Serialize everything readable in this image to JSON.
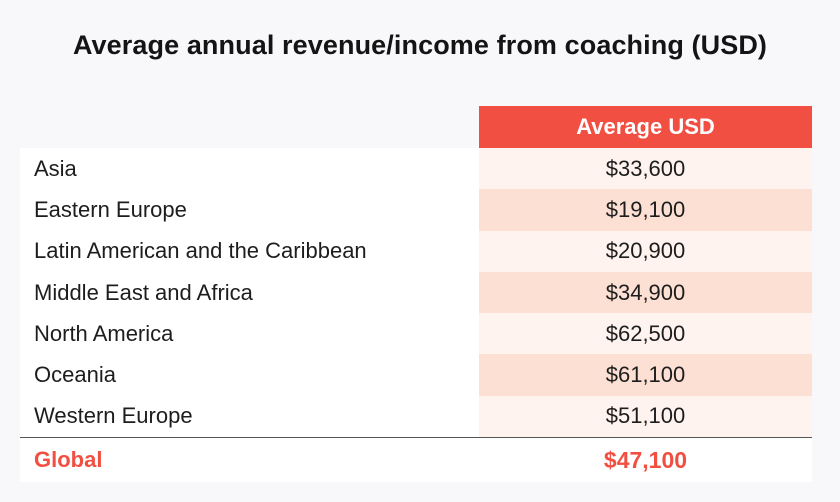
{
  "chart_data": {
    "type": "table",
    "title": "Average annual revenue/income from coaching (USD)",
    "column_header": "Average USD",
    "rows": [
      {
        "region": "Asia",
        "value": "$33,600",
        "amount": 33600
      },
      {
        "region": "Eastern Europe",
        "value": "$19,100",
        "amount": 19100
      },
      {
        "region": "Latin American and the Caribbean",
        "value": "$20,900",
        "amount": 20900
      },
      {
        "region": "Middle East and Africa",
        "value": "$34,900",
        "amount": 34900
      },
      {
        "region": "North America",
        "value": "$62,500",
        "amount": 62500
      },
      {
        "region": "Oceania",
        "value": "$61,100",
        "amount": 61100
      },
      {
        "region": "Western Europe",
        "value": "$51,100",
        "amount": 51100
      }
    ],
    "total": {
      "region": "Global",
      "value": "$47,100",
      "amount": 47100
    }
  },
  "colors": {
    "accent": "#f24f43",
    "row_light": "#fff3ef",
    "row_dark": "#fde0d4"
  }
}
